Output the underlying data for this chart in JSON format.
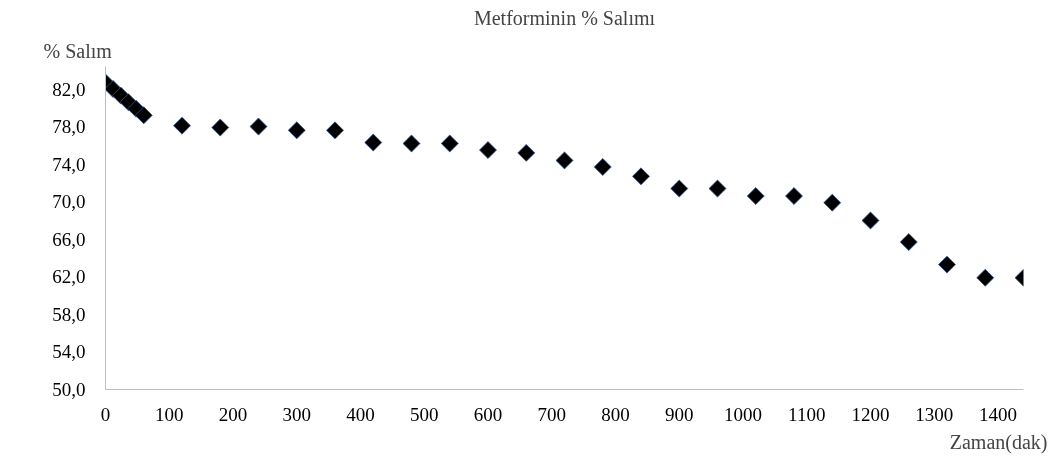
{
  "chart_data": {
    "type": "scatter",
    "title": "Metforminin % Salımı",
    "xlabel": "Zaman(dak)",
    "ylabel": "% Salım",
    "x": [
      0,
      12,
      24,
      36,
      48,
      60,
      120,
      180,
      240,
      300,
      360,
      420,
      480,
      540,
      600,
      660,
      720,
      780,
      840,
      900,
      960,
      1020,
      1080,
      1140,
      1200,
      1260,
      1320,
      1380,
      1440
    ],
    "series": [
      {
        "color": "#000000",
        "values": [
          82.7,
          82.0,
          81.3,
          80.6,
          79.9,
          79.2,
          78.1,
          77.9,
          78.0,
          77.6,
          77.6,
          76.3,
          76.2,
          76.2,
          75.5,
          75.2,
          74.4,
          73.7,
          72.7,
          71.4,
          71.4,
          70.6,
          70.6,
          69.9,
          68.0,
          65.7,
          63.3,
          61.9,
          61.9
        ]
      }
    ],
    "xlim": [
      0,
      1440
    ],
    "ylim": [
      50,
      84.4
    ],
    "xticks": [
      0,
      100,
      200,
      300,
      400,
      500,
      600,
      700,
      800,
      900,
      1000,
      1100,
      1200,
      1300,
      1400
    ],
    "yticks": [
      {
        "value": 50,
        "label": "50,0"
      },
      {
        "value": 54,
        "label": "54,0"
      },
      {
        "value": 58,
        "label": "58,0"
      },
      {
        "value": 62,
        "label": "62,0"
      },
      {
        "value": 66,
        "label": "66,0"
      },
      {
        "value": 70,
        "label": "70,0"
      },
      {
        "value": 74,
        "label": "74,0"
      },
      {
        "value": 78,
        "label": "78,0"
      },
      {
        "value": 82,
        "label": "82,0"
      }
    ],
    "marker": "diamond",
    "grid": false
  }
}
